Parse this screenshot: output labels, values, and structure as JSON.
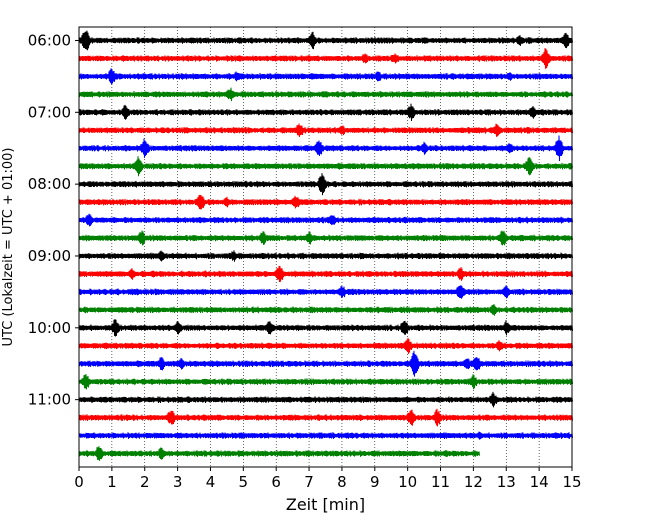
{
  "chart_data": {
    "type": "line",
    "title": "",
    "xlabel": "Zeit  [min]",
    "ylabel": "UTC (Lokalzeit = UTC + 01:00)",
    "xlim": [
      0,
      15
    ],
    "x_ticks": [
      "0",
      "1",
      "2",
      "3",
      "4",
      "5",
      "6",
      "7",
      "8",
      "9",
      "10",
      "11",
      "12",
      "13",
      "14",
      "15"
    ],
    "y_tick_labels": [
      "06:00",
      "07:00",
      "08:00",
      "09:00",
      "10:00",
      "11:00"
    ],
    "grid": "vertical dotted at each minute",
    "trace_colors": [
      "#000000",
      "#ff0000",
      "#0000ff",
      "#008000"
    ],
    "traces": [
      {
        "start": "06:00",
        "end_min": 15,
        "spikes": [
          [
            0.2,
            14
          ],
          [
            7.1,
            10
          ],
          [
            13.4,
            7
          ],
          [
            14.8,
            10
          ]
        ]
      },
      {
        "start": "06:15",
        "end_min": 15,
        "spikes": [
          [
            8.7,
            7
          ],
          [
            9.6,
            6
          ],
          [
            14.2,
            12
          ]
        ]
      },
      {
        "start": "06:30",
        "end_min": 15,
        "spikes": [
          [
            1.0,
            10
          ],
          [
            4.8,
            6
          ],
          [
            9.1,
            6
          ],
          [
            13.1,
            6
          ]
        ]
      },
      {
        "start": "06:45",
        "end_min": 15,
        "spikes": [
          [
            4.6,
            8
          ]
        ]
      },
      {
        "start": "07:00",
        "end_min": 15,
        "spikes": [
          [
            1.4,
            8
          ],
          [
            10.1,
            10
          ],
          [
            13.8,
            7
          ]
        ]
      },
      {
        "start": "07:15",
        "end_min": 15,
        "spikes": [
          [
            6.7,
            9
          ],
          [
            8.0,
            6
          ],
          [
            12.7,
            8
          ]
        ]
      },
      {
        "start": "07:30",
        "end_min": 15,
        "spikes": [
          [
            2.0,
            12
          ],
          [
            7.3,
            10
          ],
          [
            10.5,
            8
          ],
          [
            13.1,
            7
          ],
          [
            14.6,
            14
          ]
        ]
      },
      {
        "start": "07:45",
        "end_min": 15,
        "spikes": [
          [
            1.8,
            11
          ],
          [
            13.7,
            12
          ]
        ]
      },
      {
        "start": "08:00",
        "end_min": 15,
        "spikes": [
          [
            7.4,
            14
          ]
        ]
      },
      {
        "start": "08:15",
        "end_min": 15,
        "spikes": [
          [
            3.7,
            10
          ],
          [
            4.5,
            6
          ],
          [
            6.6,
            8
          ]
        ]
      },
      {
        "start": "08:30",
        "end_min": 15,
        "spikes": [
          [
            0.3,
            8
          ],
          [
            7.7,
            7
          ]
        ]
      },
      {
        "start": "08:45",
        "end_min": 15,
        "spikes": [
          [
            1.9,
            9
          ],
          [
            5.6,
            8
          ],
          [
            7.0,
            8
          ],
          [
            12.9,
            10
          ]
        ]
      },
      {
        "start": "09:00",
        "end_min": 15,
        "spikes": [
          [
            2.5,
            7
          ],
          [
            4.7,
            7
          ]
        ]
      },
      {
        "start": "09:15",
        "end_min": 15,
        "spikes": [
          [
            1.6,
            7
          ],
          [
            6.1,
            12
          ],
          [
            11.6,
            8
          ]
        ]
      },
      {
        "start": "09:30",
        "end_min": 15,
        "spikes": [
          [
            8.0,
            8
          ],
          [
            11.6,
            10
          ],
          [
            13.0,
            8
          ]
        ]
      },
      {
        "start": "09:45",
        "end_min": 15,
        "spikes": [
          [
            12.6,
            8
          ]
        ]
      },
      {
        "start": "10:00",
        "end_min": 15,
        "spikes": [
          [
            1.1,
            10
          ],
          [
            3.0,
            8
          ],
          [
            5.8,
            9
          ],
          [
            9.9,
            10
          ],
          [
            13.0,
            8
          ]
        ]
      },
      {
        "start": "10:15",
        "end_min": 15,
        "spikes": [
          [
            10.0,
            10
          ],
          [
            12.8,
            7
          ]
        ]
      },
      {
        "start": "10:30",
        "end_min": 15,
        "spikes": [
          [
            2.5,
            8
          ],
          [
            3.1,
            7
          ],
          [
            10.2,
            14
          ],
          [
            11.8,
            8
          ],
          [
            12.1,
            10
          ]
        ]
      },
      {
        "start": "10:45",
        "end_min": 15,
        "spikes": [
          [
            0.2,
            10
          ],
          [
            12.0,
            8
          ]
        ]
      },
      {
        "start": "11:00",
        "end_min": 15,
        "spikes": [
          [
            12.6,
            8
          ]
        ]
      },
      {
        "start": "11:15",
        "end_min": 15,
        "spikes": [
          [
            2.8,
            10
          ],
          [
            10.1,
            10
          ],
          [
            10.9,
            10
          ]
        ]
      },
      {
        "start": "11:30",
        "end_min": 15,
        "spikes": [
          [
            12.2,
            5
          ]
        ]
      },
      {
        "start": "11:45",
        "end_min": 12.2,
        "spikes": [
          [
            0.6,
            9
          ],
          [
            2.5,
            7
          ]
        ]
      }
    ]
  }
}
